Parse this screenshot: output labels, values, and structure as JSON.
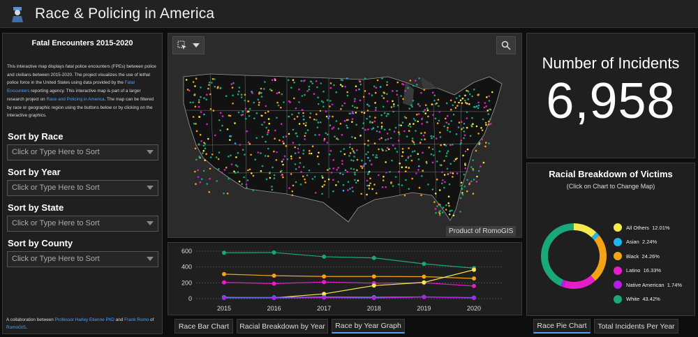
{
  "header": {
    "title": "Race & Policing in America",
    "logo_icon": "police-officer-logo"
  },
  "left_panel": {
    "title": "Fatal Encounters 2015-2020",
    "desc_part1": "This interactive map displays fatal police encounters (FPEs) between police and civilians between 2015-2020. The project visualizes the use of lethal police force in the United States using data provided by the ",
    "desc_link1": "Fatal Encounters",
    "desc_part2": " reporting agency. This interactive map is part of a larger research project on ",
    "desc_link2": "Race and Policing in America",
    "desc_part3": ". The map can be filtered by race or geographic region using the buttons below or by clicking on the interactive graphics.",
    "filters": [
      {
        "label": "Sort by Race",
        "placeholder": "Click or Type Here to Sort"
      },
      {
        "label": "Sort by Year",
        "placeholder": "Click or Type Here to Sort"
      },
      {
        "label": "Sort by State",
        "placeholder": "Click or Type Here to Sort"
      },
      {
        "label": "Sort by County",
        "placeholder": "Click or Type Here to Sort"
      }
    ],
    "collab_part1": "A collaboration between ",
    "collab_link1": "Professor Harley Etienne PhD",
    "collab_part2": " and ",
    "collab_link2": "Frank Romo",
    "collab_part3": " of ",
    "collab_link3": "RomoGIS",
    "collab_part4": "."
  },
  "map": {
    "credit": "Product of RomoGIS",
    "select_icon": "select-tool-icon",
    "search_icon": "search-icon"
  },
  "incidents": {
    "label": "Number of Incidents",
    "value": "6,958"
  },
  "pie": {
    "title": "Racial Breakdown of Victims",
    "subtitle": "(Click on Chart to Change Map)",
    "slices": [
      {
        "name": "All Others",
        "pct_label": "12.01%",
        "value": 12.01,
        "color": "#f5e94b"
      },
      {
        "name": "Asian",
        "pct_label": "2.24%",
        "value": 2.24,
        "color": "#1fb6f0"
      },
      {
        "name": "Black",
        "pct_label": "24.26%",
        "value": 24.26,
        "color": "#f5a316"
      },
      {
        "name": "Latino",
        "pct_label": "16.33%",
        "value": 16.33,
        "color": "#e51ec9"
      },
      {
        "name": "Native American",
        "pct_label": "1.74%",
        "value": 1.74,
        "color": "#b41ee8"
      },
      {
        "name": "White",
        "pct_label": "43.42%",
        "value": 43.42,
        "color": "#1aa77a"
      }
    ]
  },
  "chart_data": {
    "type": "line",
    "x": [
      "2015",
      "2016",
      "2017",
      "2018",
      "2019",
      "2020"
    ],
    "ylim": [
      0,
      600
    ],
    "yticks": [
      "0",
      "200",
      "400",
      "600"
    ],
    "series": [
      {
        "color": "#1aa77a",
        "values": [
          580,
          583,
          530,
          515,
          440,
          385
        ]
      },
      {
        "color": "#f5a316",
        "values": [
          310,
          290,
          280,
          280,
          278,
          255
        ]
      },
      {
        "color": "#e51ec9",
        "values": [
          205,
          190,
          210,
          195,
          200,
          160
        ]
      },
      {
        "color": "#f5e94b",
        "values": [
          15,
          10,
          60,
          165,
          205,
          365
        ]
      },
      {
        "color": "#1fb6f0",
        "values": [
          15,
          15,
          20,
          18,
          22,
          12
        ]
      },
      {
        "color": "#b41ee8",
        "values": [
          8,
          8,
          12,
          8,
          20,
          8
        ]
      }
    ]
  },
  "tabs_left": [
    {
      "label": "Race Bar Chart",
      "active": false
    },
    {
      "label": "Racial Breakdown by Year",
      "active": false
    },
    {
      "label": "Race by Year Graph",
      "active": true
    }
  ],
  "tabs_right": [
    {
      "label": "Race Pie Chart",
      "active": true
    },
    {
      "label": "Total Incidents Per Year",
      "active": false
    }
  ]
}
